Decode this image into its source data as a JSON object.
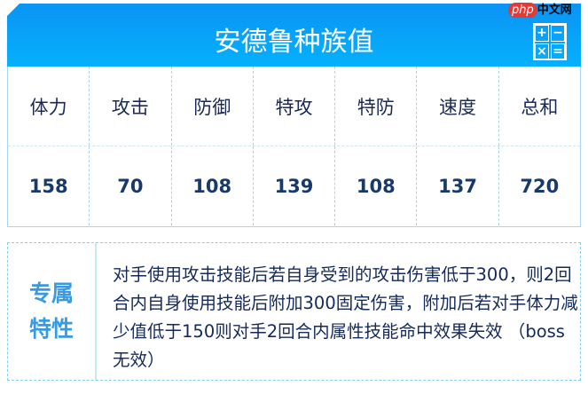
{
  "header": {
    "title": "安德鲁种族值",
    "icon": "calculator-icon",
    "calc_symbols": [
      "+",
      "−",
      "×",
      "="
    ]
  },
  "watermark": {
    "logo_text": "php中文网"
  },
  "stats": {
    "labels": [
      "体力",
      "攻击",
      "防御",
      "特攻",
      "特防",
      "速度",
      "总和"
    ],
    "values": [
      "158",
      "70",
      "108",
      "139",
      "108",
      "137",
      "720"
    ]
  },
  "trait": {
    "label": "专属特性",
    "text": "对手使用攻击技能后若自身受到的攻击伤害低于300，则2回合内自身使用技能后附加300固定伤害，附加后若对手体力减少值低于150则对手2回合内属性技能命中效果失效 （boss无效）"
  },
  "colors": {
    "header": "#0a94f5",
    "value_text": "#183a6a",
    "trait_label": "#3a9ae0"
  }
}
